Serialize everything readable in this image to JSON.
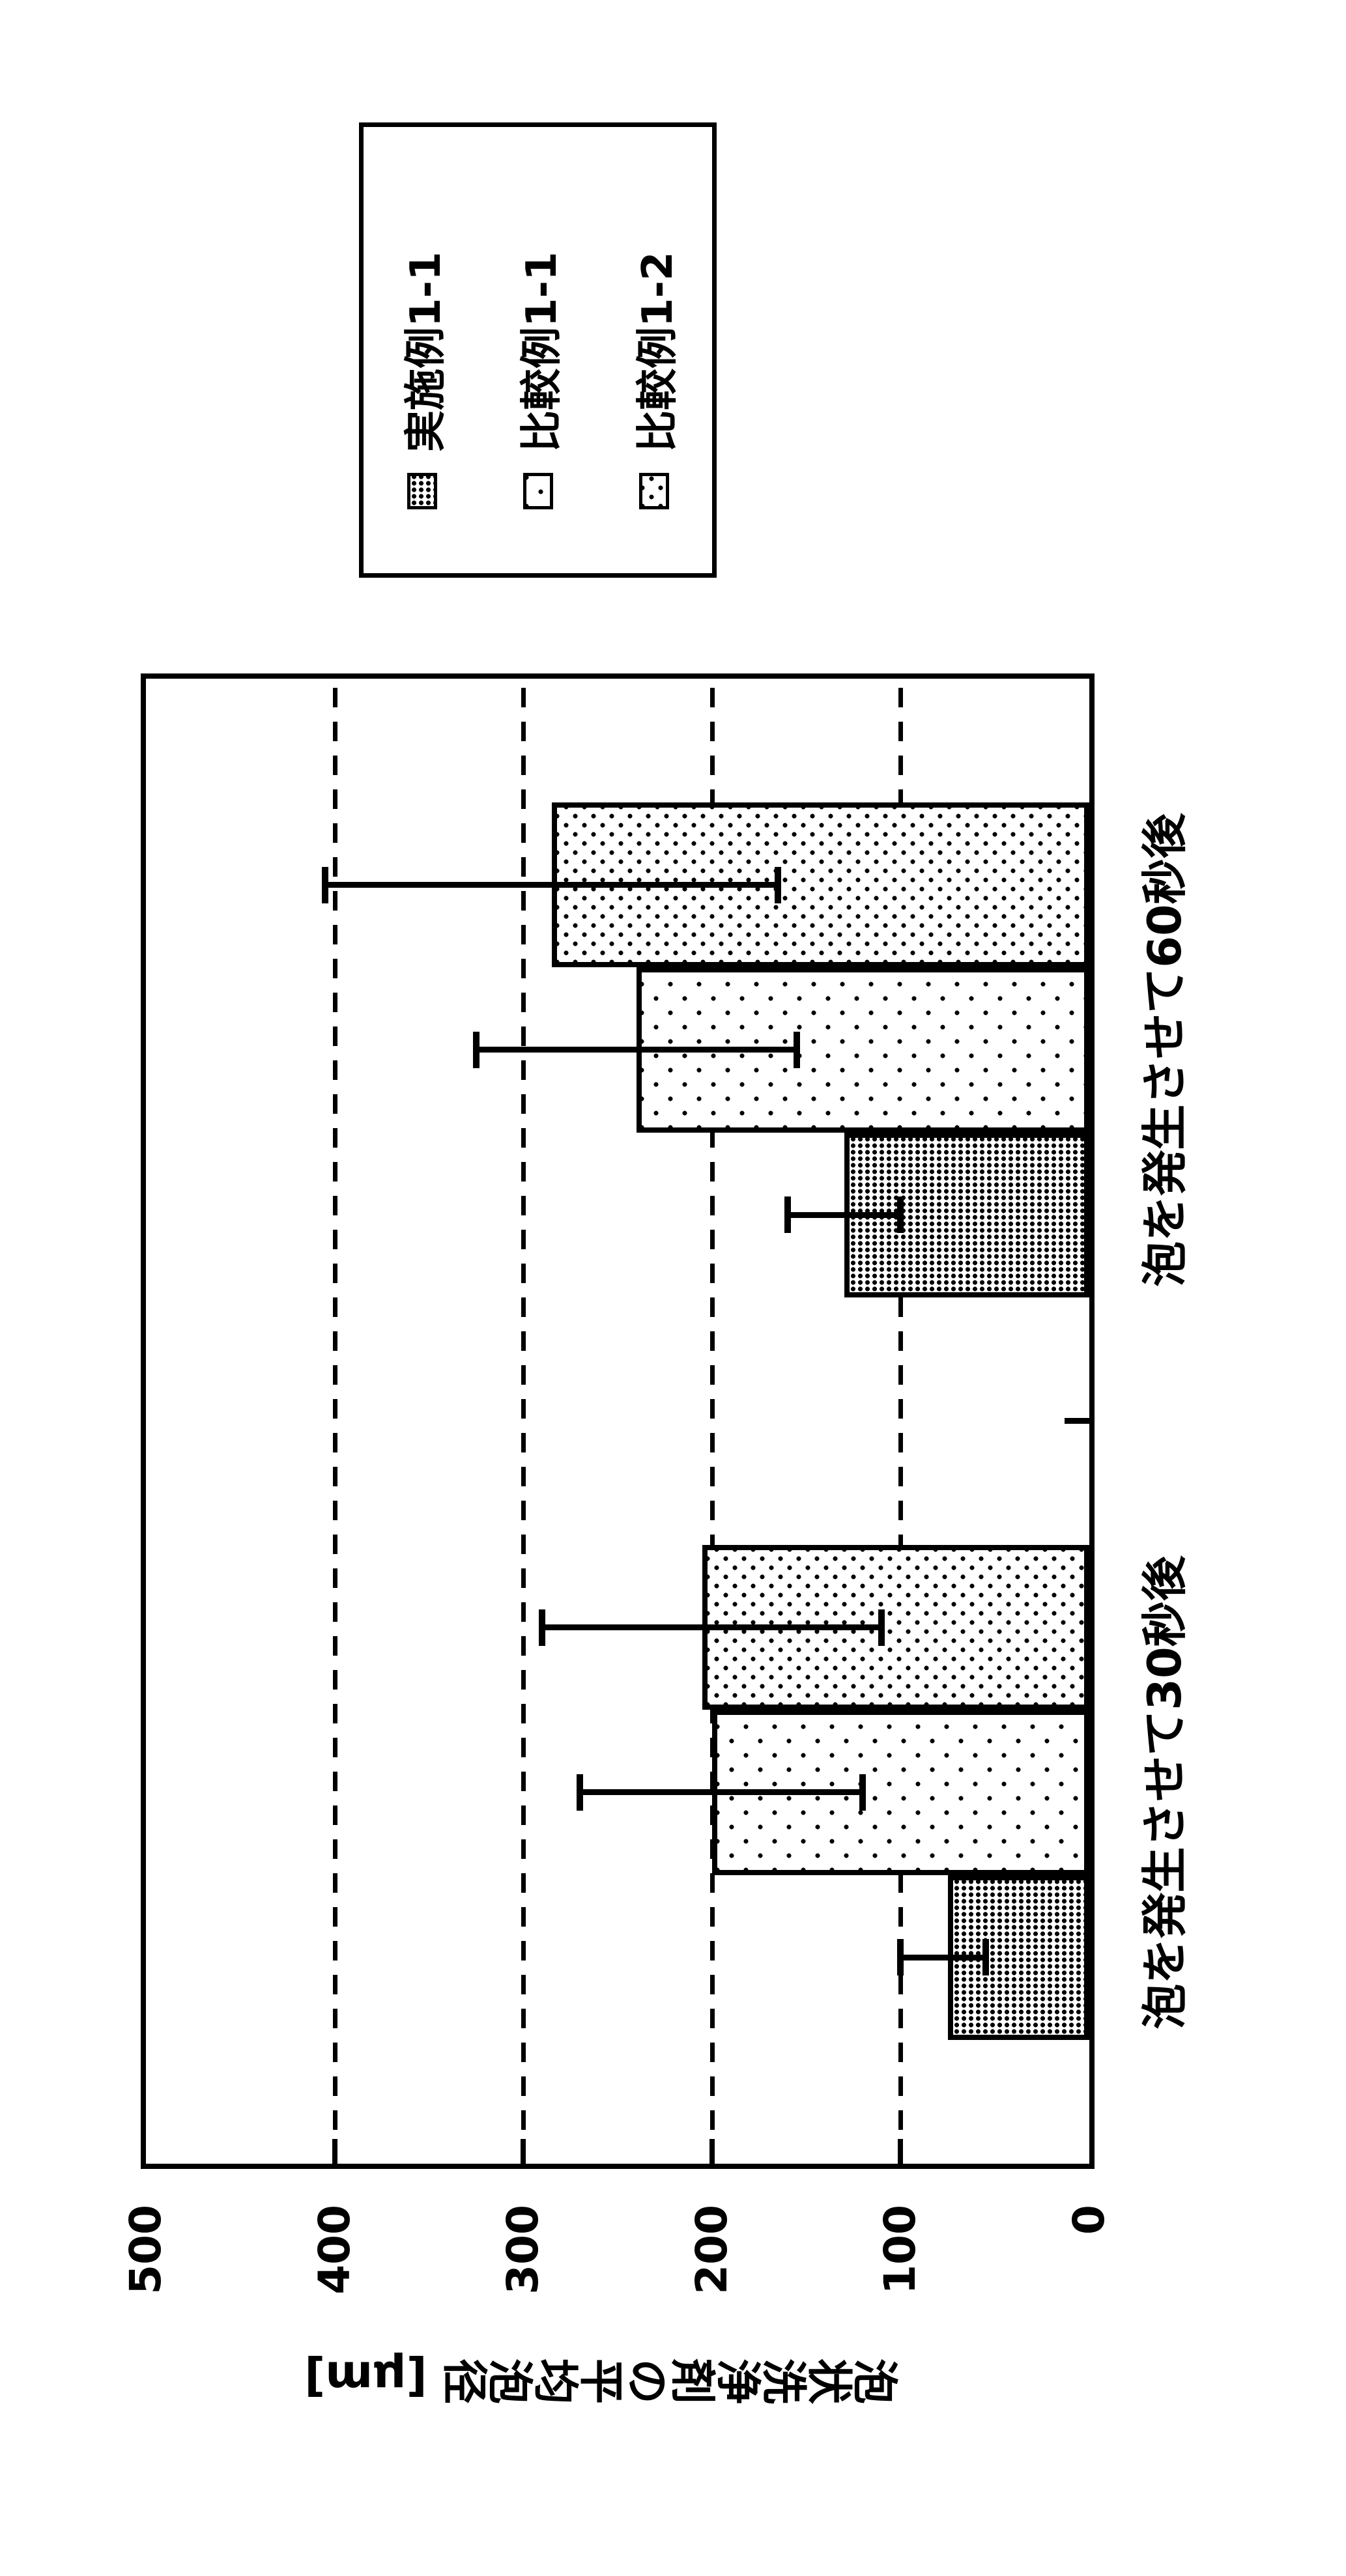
{
  "figure": {
    "background_color": "#ffffff",
    "ink_color": "#000000",
    "orientation": "chart rotated 90 degrees counterclockwise on portrait page"
  },
  "chart_data": {
    "type": "bar",
    "title": "",
    "xlabel": "",
    "ylabel": "泡状洗浄剤の平均泡径 [μm]",
    "ylim": [
      0,
      500
    ],
    "ytick_interval": 100,
    "ytick_labels": [
      "0",
      "100",
      "200",
      "300",
      "400",
      "500"
    ],
    "grid": "dashed lines at each 100 between 100 and 400",
    "legend_position": "right of plot, boxed",
    "categories": [
      "泡を発生させて30秒後",
      "泡を発生させて60秒後"
    ],
    "series": [
      {
        "name": "実施例1-1",
        "pattern": "dense-dots",
        "values": [
          75,
          130
        ],
        "error_low": [
          55,
          100
        ],
        "error_high": [
          100,
          160
        ]
      },
      {
        "name": "比較例1-1",
        "pattern": "sparse-dots",
        "values": [
          200,
          240
        ],
        "error_low": [
          120,
          155
        ],
        "error_high": [
          270,
          325
        ]
      },
      {
        "name": "比較例1-2",
        "pattern": "medium-dots",
        "values": [
          205,
          285
        ],
        "error_low": [
          110,
          165
        ],
        "error_high": [
          290,
          405
        ]
      }
    ]
  }
}
